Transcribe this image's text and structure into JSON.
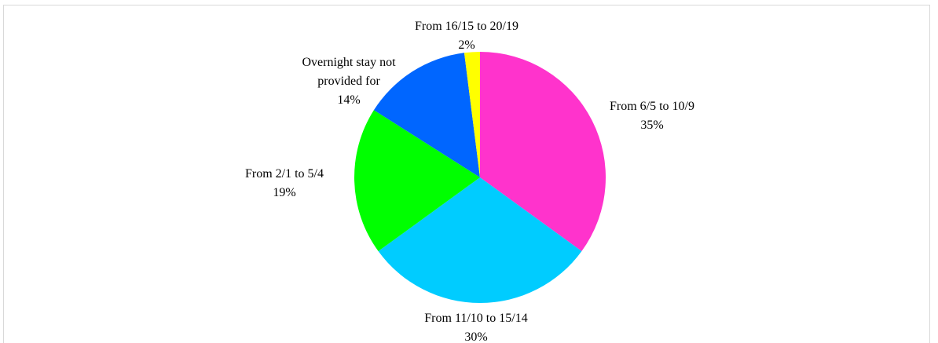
{
  "chart_data": {
    "type": "pie",
    "categories": [
      "From 6/5 to 10/9",
      "From 11/10 to 15/14",
      "From 2/1 to 5/4",
      "Overnight stay not provided for",
      "From 16/15 to 20/19"
    ],
    "values": [
      35,
      30,
      19,
      14,
      2
    ],
    "value_labels": [
      "35%",
      "30%",
      "19%",
      "14%",
      "2%"
    ],
    "colors": [
      "#ff33cc",
      "#00ccff",
      "#00ff00",
      "#0066ff",
      "#ffff00"
    ]
  }
}
